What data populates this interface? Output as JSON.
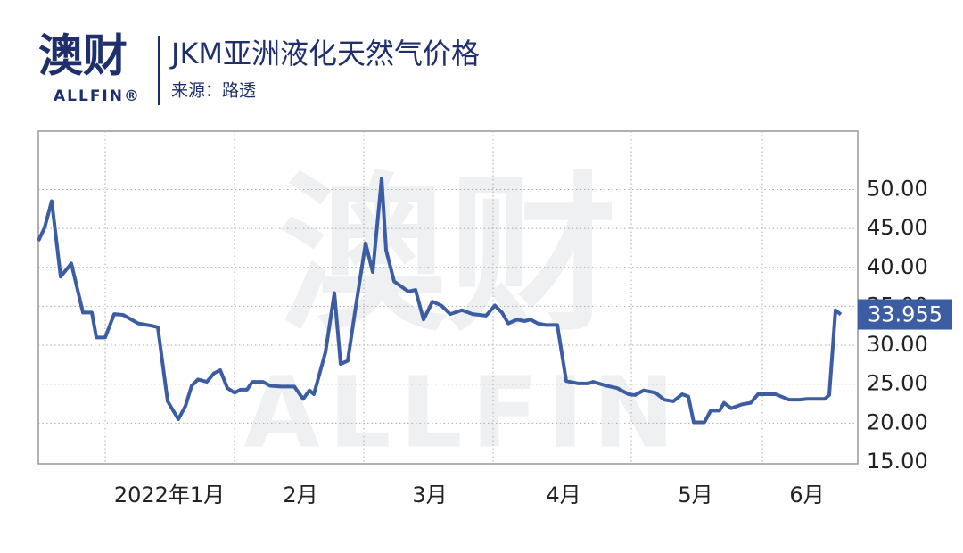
{
  "chart_data": {
    "type": "line",
    "logo": "澳财",
    "logo_sub": "ALLFIN®",
    "title": "JKM亚洲液化天然气价格",
    "source": "来源：路透",
    "watermark": "澳财",
    "watermark_sub": "ALLFIN",
    "color": "#3d5da3",
    "grid": true,
    "xlim": [
      0,
      184
    ],
    "ylim": [
      15,
      57.5
    ],
    "yticks": [
      {
        "value": 15,
        "label": "15.00"
      },
      {
        "value": 20,
        "label": "20.00"
      },
      {
        "value": 25,
        "label": "25.00"
      },
      {
        "value": 30,
        "label": "30.00"
      },
      {
        "value": 35,
        "label": "35.00"
      },
      {
        "value": 40,
        "label": "40.00"
      },
      {
        "value": 45,
        "label": "45.00"
      },
      {
        "value": 50,
        "label": "50.00"
      }
    ],
    "xticks": [
      {
        "value": 29.4,
        "label": "2022年1月"
      },
      {
        "value": 58.8,
        "label": "2月"
      },
      {
        "value": 87.8,
        "label": "3月"
      },
      {
        "value": 117.8,
        "label": "4月"
      },
      {
        "value": 147.4,
        "label": "5月"
      },
      {
        "value": 172.4,
        "label": "6月"
      }
    ],
    "xgrid": [
      15,
      44,
      73,
      102,
      133,
      162.4
    ],
    "x": [
      0,
      1.4,
      3,
      5,
      7.4,
      10,
      12,
      13,
      15,
      17,
      19,
      22.4,
      25.4,
      26.8,
      29,
      31.4,
      33,
      34.4,
      35.8,
      37.8,
      39.4,
      40.8,
      42.4,
      44,
      45.4,
      46.8,
      48,
      50.4,
      52,
      54.4,
      57.4,
      59.4,
      60.8,
      61.8,
      64.4,
      66.4,
      67.8,
      69.4,
      71,
      73.4,
      75,
      77,
      78,
      79.8,
      83,
      84.6,
      86.4,
      88.4,
      90.4,
      92.4,
      95,
      97.4,
      100.4,
      102.4,
      104,
      105.4,
      107.4,
      109,
      110.4,
      112,
      113.8,
      116.4,
      118.4,
      121,
      123.4,
      124.4,
      127.4,
      129.8,
      132.4,
      133.8,
      135.8,
      138.4,
      140.4,
      142.4,
      144.4,
      145.8,
      147,
      149.4,
      150.8,
      152.8,
      153.8,
      155.4,
      157.8,
      159.8,
      161.4,
      165.4,
      168.4,
      170.8,
      172.4,
      176.4,
      177.4,
      178.8,
      180
    ],
    "values": [
      43.4,
      45.1,
      48.5,
      38.8,
      40.5,
      34.2,
      34.2,
      31.0,
      31.0,
      34.0,
      33.9,
      32.8,
      32.5,
      32.3,
      22.8,
      20.5,
      22.2,
      24.8,
      25.6,
      25.3,
      26.4,
      26.8,
      24.5,
      23.9,
      24.3,
      24.3,
      25.3,
      25.3,
      24.8,
      24.7,
      24.7,
      23.1,
      24.2,
      23.7,
      29.1,
      36.7,
      27.6,
      28.0,
      34.2,
      43.1,
      39.4,
      51.4,
      42.2,
      38.2,
      36.9,
      37.1,
      33.3,
      35.6,
      35.1,
      34.0,
      34.5,
      34.0,
      33.8,
      35.1,
      34.2,
      32.8,
      33.3,
      33.1,
      33.3,
      32.8,
      32.6,
      32.6,
      25.4,
      25.1,
      25.1,
      25.3,
      24.8,
      24.5,
      23.7,
      23.6,
      24.2,
      23.9,
      23.0,
      22.8,
      23.7,
      23.4,
      20.1,
      20.1,
      21.6,
      21.6,
      22.6,
      21.9,
      22.4,
      22.6,
      23.7,
      23.7,
      23.0,
      23.0,
      23.1,
      23.1,
      23.6,
      34.5,
      33.955
    ]
  }
}
